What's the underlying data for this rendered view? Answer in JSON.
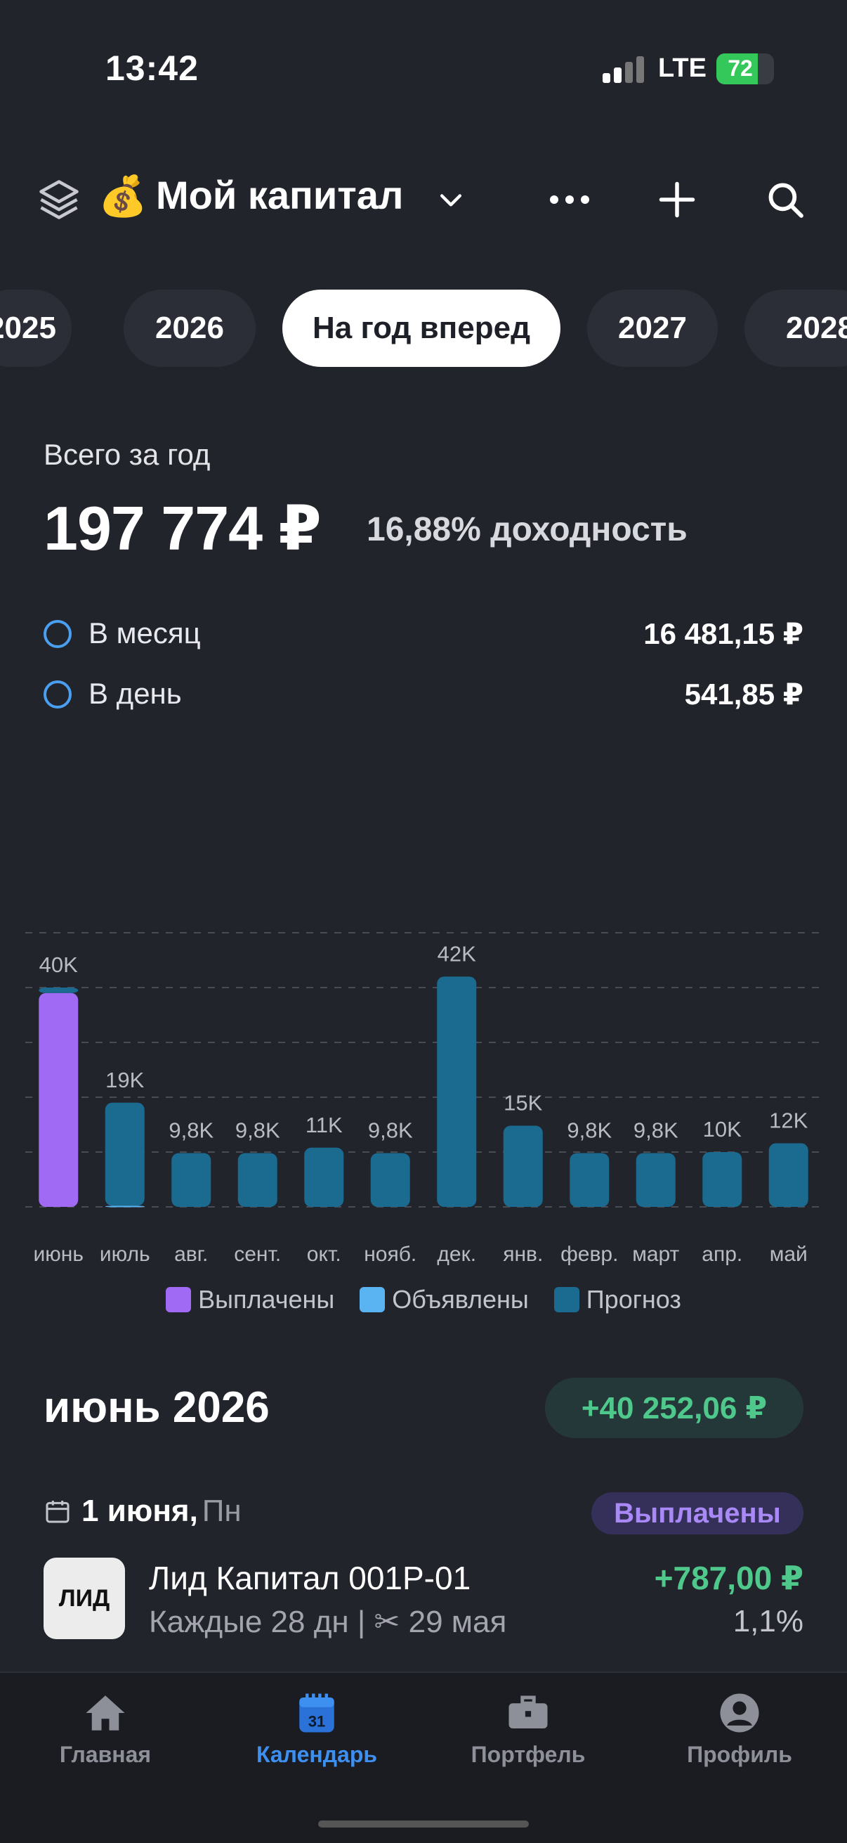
{
  "status": {
    "time": "13:42",
    "network": "LTE",
    "battery": "72"
  },
  "header": {
    "emoji": "💰",
    "title": "Мой капитал",
    "icons": [
      "layers-icon",
      "chevron-down-icon",
      "more-icon",
      "plus-icon",
      "search-icon"
    ]
  },
  "periods": [
    "2025",
    "2026",
    "На год вперед",
    "2027",
    "2028"
  ],
  "active_period": "На год вперед",
  "summary": {
    "label": "Всего за год",
    "total": "197 774 ₽",
    "yield": "16,88% доходность",
    "per_month_label": "В месяц",
    "per_month": "16 481,15 ₽",
    "per_day_label": "В день",
    "per_day": "541,85 ₽"
  },
  "chart_data": {
    "type": "bar",
    "categories": [
      "июнь",
      "июль",
      "авг.",
      "сент.",
      "окт.",
      "нояб.",
      "дек.",
      "янв.",
      "февр.",
      "март",
      "апр.",
      "май"
    ],
    "value_labels": [
      "40K",
      "19K",
      "9,8K",
      "9,8K",
      "11K",
      "9,8K",
      "42K",
      "15K",
      "9,8K",
      "9,8K",
      "10K",
      "12K"
    ],
    "series": [
      {
        "name": "Выплачены",
        "color": "#a06af5",
        "values": [
          39000,
          0,
          0,
          0,
          0,
          0,
          0,
          0,
          0,
          0,
          0,
          0
        ]
      },
      {
        "name": "Объявлены",
        "color": "#5ab4f2",
        "values": [
          0,
          200,
          0,
          0,
          0,
          0,
          0,
          0,
          0,
          0,
          0,
          0
        ]
      },
      {
        "name": "Прогноз",
        "color": "#1b6a90",
        "values": [
          1000,
          18800,
          9800,
          9800,
          10800,
          9800,
          42000,
          14800,
          9800,
          9800,
          10000,
          11600
        ]
      }
    ],
    "ylim": [
      0,
      50000
    ],
    "grid": true,
    "legend": "bottom"
  },
  "month": {
    "title": "июнь 2026",
    "total": "+40 252,06 ₽",
    "date": "1 июня,",
    "weekday": "Пн",
    "status": "Выплачены"
  },
  "payment": {
    "logo_text": "ЛИД",
    "name": "Лид Капитал 001P-01",
    "schedule": "Каждые 28 дн | ✂ 29 мая",
    "amount": "+787,00 ₽",
    "percent": "1,1%"
  },
  "tabs": [
    {
      "label": "Главная",
      "icon": "home-icon"
    },
    {
      "label": "Календарь",
      "icon": "calendar-icon",
      "badge": "31"
    },
    {
      "label": "Портфель",
      "icon": "briefcase-icon"
    },
    {
      "label": "Профиль",
      "icon": "profile-icon"
    }
  ],
  "colors": {
    "background": "#22242c",
    "accent": "#3d8ff0",
    "positive": "#4fc98b",
    "paid": "#a06af5"
  }
}
